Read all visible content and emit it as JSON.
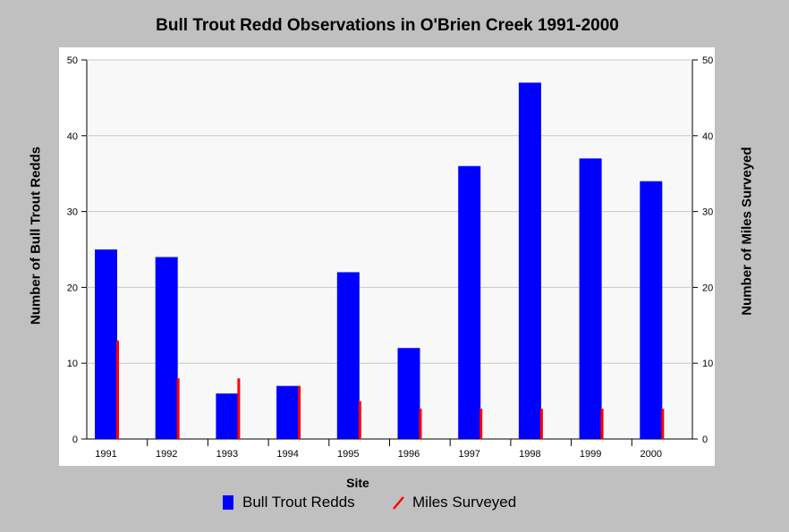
{
  "chart_data": {
    "type": "bar",
    "title": "Bull Trout Redd Observations in O'Brien Creek 1991-2000",
    "xlabel": "Site",
    "ylabel": "Number of Bull Trout Redds",
    "y2label": "Number of Miles Surveyed",
    "categories": [
      "1991",
      "1992",
      "1993",
      "1994",
      "1995",
      "1996",
      "1997",
      "1998",
      "1999",
      "2000"
    ],
    "series": [
      {
        "name": "Bull Trout Redds",
        "kind": "bar",
        "axis": "left",
        "color": "#0000ff",
        "values": [
          25,
          24,
          6,
          7,
          22,
          12,
          36,
          47,
          37,
          34
        ]
      },
      {
        "name": "Miles Surveyed",
        "kind": "bar-line",
        "axis": "right",
        "color": "#ff0000",
        "values": [
          13,
          8,
          8,
          7,
          5,
          4,
          4,
          4,
          4,
          4
        ]
      }
    ],
    "ylim": [
      0,
      50
    ],
    "y2lim": [
      0,
      50
    ],
    "yticks": [
      0,
      10,
      20,
      30,
      40,
      50
    ],
    "grid": true,
    "legend": "bottom"
  }
}
